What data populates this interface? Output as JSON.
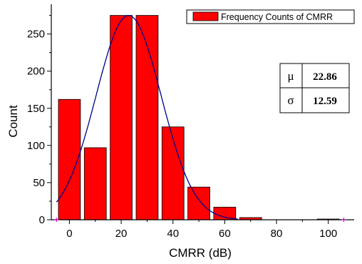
{
  "chart_data": {
    "type": "bar",
    "xlabel": "CMRR (dB)",
    "ylabel": "Count",
    "xlim": [
      -7,
      110
    ],
    "ylim": [
      0,
      290
    ],
    "x_ticks": [
      0,
      20,
      40,
      60,
      80,
      100
    ],
    "y_ticks": [
      0,
      50,
      100,
      150,
      200,
      250
    ],
    "bar_width": 8.5,
    "series": [
      {
        "name": "Frequency Counts of CMRR",
        "x": [
          0,
          10,
          20,
          30,
          40,
          50,
          60,
          70,
          80,
          90,
          100
        ],
        "values": [
          162,
          97,
          275,
          275,
          125,
          44,
          17,
          3,
          0,
          0,
          1
        ]
      }
    ],
    "fit": {
      "type": "normal",
      "mu": 22.86,
      "sigma": 12.59,
      "peak": 275,
      "x_range": [
        -5,
        65
      ]
    },
    "stats_table": [
      {
        "symbol": "μ",
        "value": "22.86"
      },
      {
        "symbol": "σ",
        "value": "12.59"
      }
    ],
    "colors": {
      "bar_fill": "#ff0000",
      "bar_stroke": "#000000",
      "fit_line": "#00008b",
      "range_marker": "#cc00cc"
    },
    "legend_position": "top-right",
    "range_markers_x": [
      -5,
      106
    ]
  }
}
